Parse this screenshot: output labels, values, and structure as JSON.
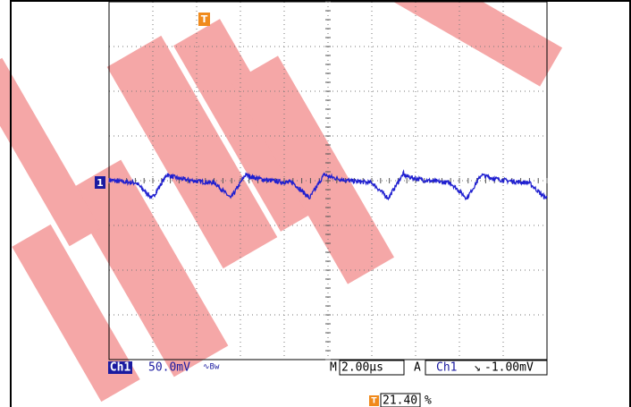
{
  "screen": {
    "channel_marker": "1",
    "trigger_marker": "T",
    "vertical": {
      "channel": "Ch1",
      "scale": "50.0mV",
      "bandwidth": "∿Bw"
    },
    "horizontal": {
      "prefix": "M",
      "scale": "2.00µs"
    },
    "trigger": {
      "mode": "A",
      "source": "Ch1",
      "slope": "↘",
      "level": "-1.00mV"
    },
    "trigger_position": {
      "icon": "T",
      "value": "21.40 %"
    }
  }
}
